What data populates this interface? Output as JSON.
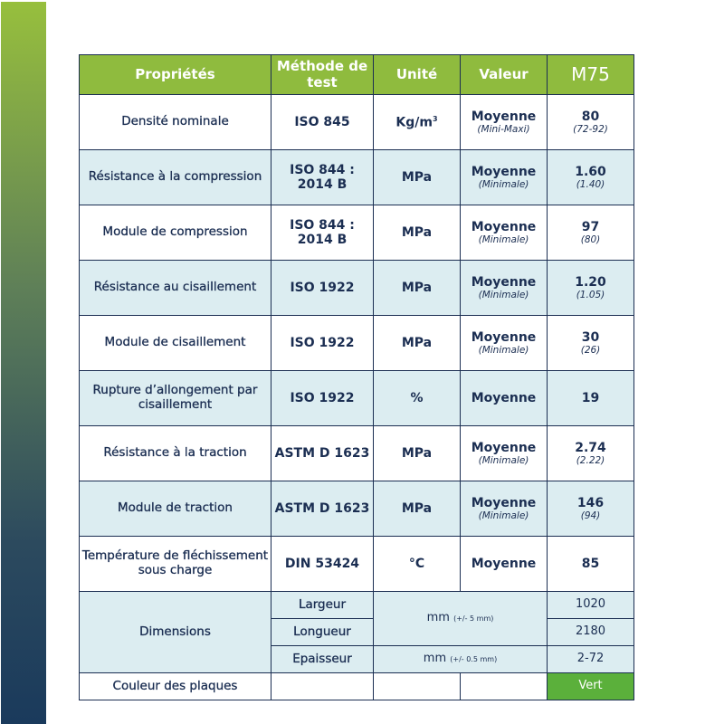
{
  "header": {
    "col1": "Propriétés",
    "col2": "Méthode de test",
    "col3": "Unité",
    "col4": "Valeur",
    "col5": "M75"
  },
  "rows": [
    {
      "prop": "Densité nominale",
      "method": "ISO 845",
      "unit": "Kg/m",
      "unit_sup": "3",
      "value": "Moyenne",
      "value_sub": "(Mini-Maxi)",
      "m75": "80",
      "m75_sub": "(72-92)"
    },
    {
      "prop": "Résistance à la compression",
      "method": "ISO 844 : 2014 B",
      "unit": "MPa",
      "value": "Moyenne",
      "value_sub": "(Minimale)",
      "m75": "1.60",
      "m75_sub": "(1.40)"
    },
    {
      "prop": "Module de compression",
      "method": "ISO 844 : 2014 B",
      "unit": "MPa",
      "value": "Moyenne",
      "value_sub": "(Minimale)",
      "m75": "97",
      "m75_sub": "(80)"
    },
    {
      "prop": "Résistance au cisaillement",
      "method": "ISO 1922",
      "unit": "MPa",
      "value": "Moyenne",
      "value_sub": "(Minimale)",
      "m75": "1.20",
      "m75_sub": "(1.05)"
    },
    {
      "prop": "Module de cisaillement",
      "method": "ISO 1922",
      "unit": "MPa",
      "value": "Moyenne",
      "value_sub": "(Minimale)",
      "m75": "30",
      "m75_sub": "(26)"
    },
    {
      "prop": "Rupture d’allongement par cisaillement",
      "method": "ISO 1922",
      "unit": "%",
      "value": "Moyenne",
      "m75": "19"
    },
    {
      "prop": "Résistance à la traction",
      "method": "ASTM D 1623",
      "unit": "MPa",
      "value": "Moyenne",
      "value_sub": "(Minimale)",
      "m75": "2.74",
      "m75_sub": "(2.22)"
    },
    {
      "prop": "Module de traction",
      "method": "ASTM D 1623",
      "unit": "MPa",
      "value": "Moyenne",
      "value_sub": "(Minimale)",
      "m75": "146",
      "m75_sub": "(94)"
    },
    {
      "prop": "Température de fléchissement sous charge",
      "method": "DIN 53424",
      "unit": "°C",
      "value": "Moyenne",
      "m75": "85"
    }
  ],
  "dimensions": {
    "label": "Dimensions",
    "largeur": "Largeur",
    "longueur": "Longueur",
    "epaisseur": "Epaisseur",
    "unit1": "mm",
    "unit1_tol": "(+/- 5 mm)",
    "unit2": "mm",
    "unit2_tol": "(+/- 0.5 mm)",
    "largeur_val": "1020",
    "longueur_val": "2180",
    "epaisseur_val": "2-72"
  },
  "couleur": {
    "label": "Couleur des plaques",
    "value": "Vert"
  },
  "colors": {
    "header_green": "#8fbb3e",
    "alt_row": "#dcedf1",
    "navy": "#1b2e52",
    "vert": "#5bb03b"
  }
}
